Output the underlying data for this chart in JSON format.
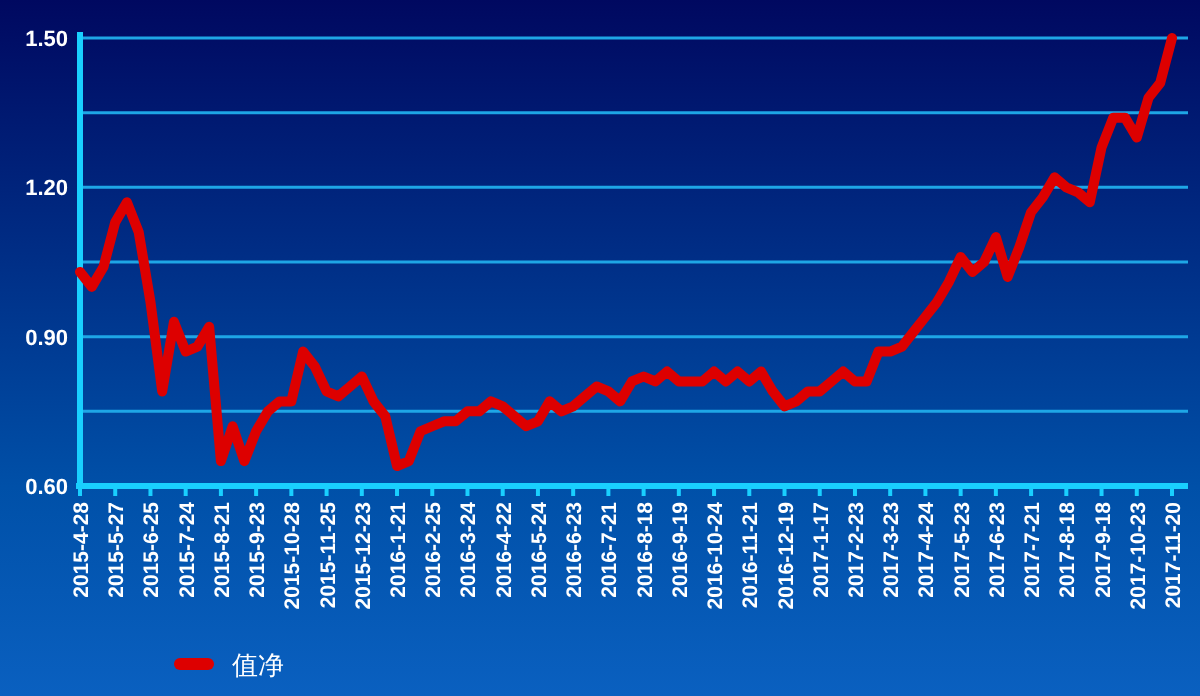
{
  "chart_data": {
    "type": "line",
    "categories": [
      "2015-4-28",
      null,
      null,
      "2015-5-27",
      null,
      null,
      "2015-6-25",
      null,
      null,
      "2015-7-24",
      null,
      null,
      "2015-8-21",
      null,
      null,
      "2015-9-23",
      null,
      null,
      "2015-10-28",
      null,
      null,
      "2015-11-25",
      null,
      null,
      "2015-12-23",
      null,
      null,
      "2016-1-21",
      null,
      null,
      "2016-2-25",
      null,
      null,
      "2016-3-24",
      null,
      null,
      "2016-4-22",
      null,
      null,
      "2016-5-24",
      null,
      null,
      "2016-6-23",
      null,
      null,
      "2016-7-21",
      null,
      null,
      "2016-8-18",
      null,
      null,
      "2016-9-19",
      null,
      null,
      "2016-10-24",
      null,
      null,
      "2016-11-21",
      null,
      null,
      "2016-12-19",
      null,
      null,
      "2017-1-17",
      null,
      null,
      "2017-2-23",
      null,
      null,
      "2017-3-23",
      null,
      null,
      "2017-4-24",
      null,
      null,
      "2017-5-23",
      null,
      null,
      "2017-6-23",
      null,
      null,
      "2017-7-21",
      null,
      null,
      "2017-8-18",
      null,
      null,
      "2017-9-18",
      null,
      null,
      "2017-10-23",
      null,
      null,
      "2017-11-20"
    ],
    "series": [
      {
        "name": "值净",
        "color": "#dd0000",
        "values": [
          1.03,
          1.0,
          1.04,
          1.13,
          1.17,
          1.11,
          0.97,
          0.79,
          0.93,
          0.87,
          0.88,
          0.92,
          0.65,
          0.72,
          0.65,
          0.71,
          0.75,
          0.77,
          0.77,
          0.87,
          0.84,
          0.79,
          0.78,
          0.8,
          0.82,
          0.77,
          0.74,
          0.64,
          0.65,
          0.71,
          0.72,
          0.73,
          0.73,
          0.75,
          0.75,
          0.77,
          0.76,
          0.74,
          0.72,
          0.73,
          0.77,
          0.75,
          0.76,
          0.78,
          0.8,
          0.79,
          0.77,
          0.81,
          0.82,
          0.81,
          0.83,
          0.81,
          0.81,
          0.81,
          0.83,
          0.81,
          0.83,
          0.81,
          0.83,
          0.79,
          0.76,
          0.77,
          0.79,
          0.79,
          0.81,
          0.83,
          0.81,
          0.81,
          0.87,
          0.87,
          0.88,
          0.91,
          0.94,
          0.97,
          1.01,
          1.06,
          1.03,
          1.05,
          1.1,
          1.02,
          1.08,
          1.15,
          1.18,
          1.22,
          1.2,
          1.19,
          1.17,
          1.28,
          1.34,
          1.34,
          1.3,
          1.38,
          1.41,
          1.5
        ]
      }
    ],
    "ylim": [
      0.6,
      1.5
    ],
    "yticks": [
      {
        "value": 0.6,
        "label": "0.60"
      },
      {
        "value": 0.75,
        "label": null
      },
      {
        "value": 0.9,
        "label": "0.90"
      },
      {
        "value": 1.05,
        "label": null
      },
      {
        "value": 1.2,
        "label": "1.20"
      },
      {
        "value": 1.35,
        "label": null
      },
      {
        "value": 1.5,
        "label": "1.50"
      }
    ],
    "grid": "y",
    "legend": "bottom left"
  }
}
